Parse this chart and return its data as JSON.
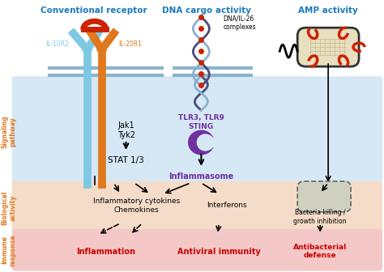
{
  "title_left": "Conventional receptor",
  "title_mid": "DNA cargo activity",
  "title_right": "AMP activity",
  "title_color": "#1a7abf",
  "bg_signaling": "#d6e8f5",
  "bg_biological": "#f5dcc8",
  "bg_immune": "#f5c8c8",
  "label_signaling": "Signaling\npathway",
  "label_biological": "Biological\nactivity",
  "label_immune": "Immune\nresponse",
  "label_color_side": "#e07820",
  "text_jak": "Jak1\nTyk2",
  "text_stat": "STAT 1/3",
  "text_tlr": "TLR3, TLR9\nSTING",
  "text_tlr_color": "#7030a0",
  "text_inflammasome": "Inflammasome",
  "text_inflammasome_color": "#7030a0",
  "text_cytokines": "Inflammatory cytokines\nChemokines",
  "text_interferons": "Interferons",
  "text_bacteria_killing": "Bacteria killing /\ngrowth inhibition",
  "text_inflammation": "Inflammation",
  "text_antiviral": "Antiviral immunity",
  "text_antibacterial": "Antibacterial\ndefense",
  "immune_text_color": "#cc0000",
  "il10r2_color": "#7ec8e3",
  "il20r1_color": "#e07820",
  "receptor_red": "#cc2200",
  "dna_dark": "#4a4a7a",
  "dna_light": "#8ab0d0",
  "bacteria_color": "#e8dfc0",
  "bacteria_edge": "#333333",
  "amp_wavy_color": "#111111",
  "membrane_color": "#8ab4cc"
}
